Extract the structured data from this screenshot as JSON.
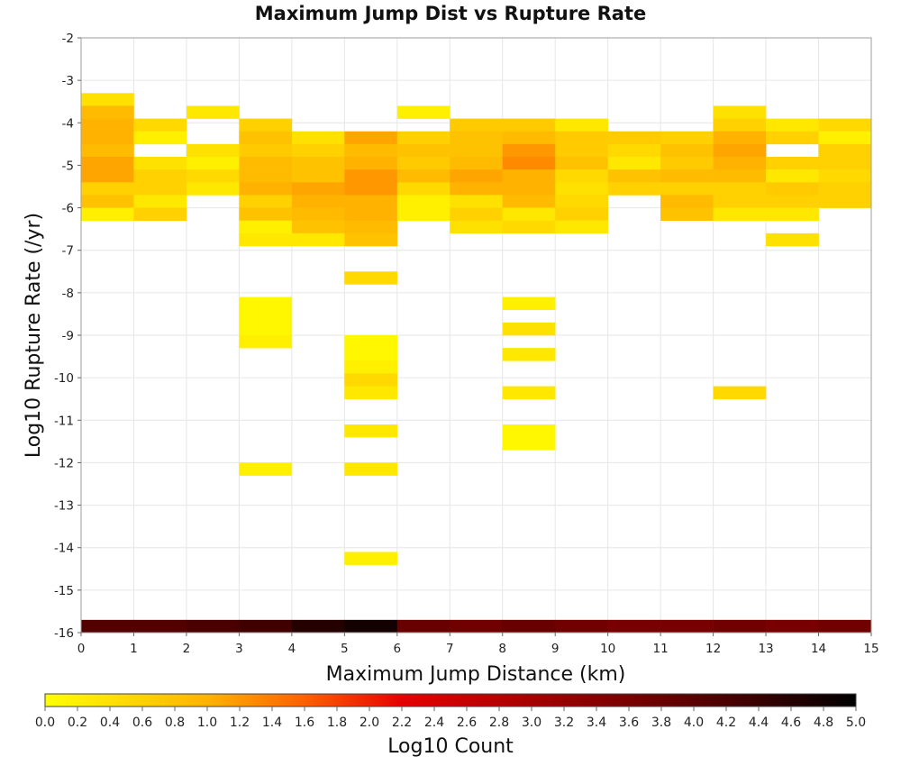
{
  "chart_data": {
    "type": "heatmap",
    "title": "Maximum Jump Dist vs Rupture Rate",
    "xlabel": "Maximum Jump Distance (km)",
    "ylabel": "Log10 Rupture Rate (/yr)",
    "xlim": [
      0,
      15
    ],
    "ylim": [
      -16,
      -2
    ],
    "x_ticks": [
      0,
      1,
      2,
      3,
      4,
      5,
      6,
      7,
      8,
      9,
      10,
      11,
      12,
      13,
      14,
      15
    ],
    "y_ticks": [
      -2,
      -3,
      -4,
      -5,
      -6,
      -7,
      -8,
      -9,
      -10,
      -11,
      -12,
      -13,
      -14,
      -15,
      -16
    ],
    "grid": true,
    "bin_width_x": 1,
    "bin_height_y": 0.3,
    "colorbar": {
      "label": "Log10 Count",
      "min": 0.0,
      "max": 5.0,
      "ticks": [
        "0.0",
        "0.2",
        "0.4",
        "0.6",
        "0.8",
        "1.0",
        "1.2",
        "1.4",
        "1.6",
        "1.8",
        "2.0",
        "2.2",
        "2.4",
        "2.6",
        "2.8",
        "3.0",
        "3.2",
        "3.4",
        "3.6",
        "3.8",
        "4.0",
        "4.2",
        "4.4",
        "4.6",
        "4.8",
        "5.0"
      ],
      "stops": [
        {
          "v": 0.0,
          "color": "#ffff00"
        },
        {
          "v": 1.0,
          "color": "#ffb300"
        },
        {
          "v": 1.6,
          "color": "#ff6000"
        },
        {
          "v": 2.2,
          "color": "#e80000"
        },
        {
          "v": 3.2,
          "color": "#980000"
        },
        {
          "v": 4.2,
          "color": "#4a0000"
        },
        {
          "v": 5.0,
          "color": "#000000"
        }
      ]
    },
    "cells": [
      {
        "x": 0,
        "y": -3.6,
        "v": 0.4
      },
      {
        "x": 0,
        "y": -3.9,
        "v": 0.9
      },
      {
        "x": 0,
        "y": -4.2,
        "v": 1.0
      },
      {
        "x": 0,
        "y": -4.5,
        "v": 1.0
      },
      {
        "x": 0,
        "y": -4.8,
        "v": 0.9
      },
      {
        "x": 0,
        "y": -5.1,
        "v": 1.1
      },
      {
        "x": 0,
        "y": -5.4,
        "v": 1.1
      },
      {
        "x": 0,
        "y": -5.7,
        "v": 0.6
      },
      {
        "x": 0,
        "y": -6.0,
        "v": 0.8
      },
      {
        "x": 0,
        "y": -6.3,
        "v": 0.2
      },
      {
        "x": 1,
        "y": -4.2,
        "v": 0.5
      },
      {
        "x": 1,
        "y": -4.5,
        "v": 0.2
      },
      {
        "x": 1,
        "y": -5.1,
        "v": 0.4
      },
      {
        "x": 1,
        "y": -5.4,
        "v": 0.6
      },
      {
        "x": 1,
        "y": -5.7,
        "v": 0.6
      },
      {
        "x": 1,
        "y": -6.0,
        "v": 0.3
      },
      {
        "x": 1,
        "y": -6.3,
        "v": 0.6
      },
      {
        "x": 2,
        "y": -3.9,
        "v": 0.3
      },
      {
        "x": 2,
        "y": -4.8,
        "v": 0.4
      },
      {
        "x": 2,
        "y": -5.1,
        "v": 0.2
      },
      {
        "x": 2,
        "y": -5.4,
        "v": 0.5
      },
      {
        "x": 2,
        "y": -5.7,
        "v": 0.3
      },
      {
        "x": 3,
        "y": -4.2,
        "v": 0.6
      },
      {
        "x": 3,
        "y": -4.5,
        "v": 0.8
      },
      {
        "x": 3,
        "y": -4.8,
        "v": 0.7
      },
      {
        "x": 3,
        "y": -5.1,
        "v": 0.9
      },
      {
        "x": 3,
        "y": -5.4,
        "v": 0.9
      },
      {
        "x": 3,
        "y": -5.7,
        "v": 1.0
      },
      {
        "x": 3,
        "y": -6.0,
        "v": 0.6
      },
      {
        "x": 3,
        "y": -6.3,
        "v": 0.8
      },
      {
        "x": 3,
        "y": -6.6,
        "v": 0.2
      },
      {
        "x": 3,
        "y": -6.9,
        "v": 0.3
      },
      {
        "x": 3,
        "y": -8.4,
        "v": 0.1
      },
      {
        "x": 3,
        "y": -8.7,
        "v": 0.1
      },
      {
        "x": 3,
        "y": -9.0,
        "v": 0.1
      },
      {
        "x": 3,
        "y": -9.3,
        "v": 0.2
      },
      {
        "x": 3,
        "y": -12.3,
        "v": 0.2
      },
      {
        "x": 4,
        "y": -4.5,
        "v": 0.4
      },
      {
        "x": 4,
        "y": -4.8,
        "v": 0.6
      },
      {
        "x": 4,
        "y": -5.1,
        "v": 0.8
      },
      {
        "x": 4,
        "y": -5.4,
        "v": 0.8
      },
      {
        "x": 4,
        "y": -5.7,
        "v": 1.1
      },
      {
        "x": 4,
        "y": -6.0,
        "v": 1.0
      },
      {
        "x": 4,
        "y": -6.3,
        "v": 0.9
      },
      {
        "x": 4,
        "y": -6.6,
        "v": 0.8
      },
      {
        "x": 4,
        "y": -6.9,
        "v": 0.3
      },
      {
        "x": 5,
        "y": -4.5,
        "v": 1.1
      },
      {
        "x": 5,
        "y": -4.8,
        "v": 0.9
      },
      {
        "x": 5,
        "y": -5.1,
        "v": 1.0
      },
      {
        "x": 5,
        "y": -5.4,
        "v": 1.2
      },
      {
        "x": 5,
        "y": -5.7,
        "v": 1.2
      },
      {
        "x": 5,
        "y": -6.0,
        "v": 1.0
      },
      {
        "x": 5,
        "y": -6.3,
        "v": 1.0
      },
      {
        "x": 5,
        "y": -6.6,
        "v": 0.9
      },
      {
        "x": 5,
        "y": -6.9,
        "v": 0.8
      },
      {
        "x": 5,
        "y": -7.8,
        "v": 0.5
      },
      {
        "x": 5,
        "y": -9.3,
        "v": 0.1
      },
      {
        "x": 5,
        "y": -9.6,
        "v": 0.1
      },
      {
        "x": 5,
        "y": -9.9,
        "v": 0.2
      },
      {
        "x": 5,
        "y": -10.2,
        "v": 0.5
      },
      {
        "x": 5,
        "y": -10.5,
        "v": 0.3
      },
      {
        "x": 5,
        "y": -11.4,
        "v": 0.3
      },
      {
        "x": 5,
        "y": -12.3,
        "v": 0.3
      },
      {
        "x": 5,
        "y": -14.4,
        "v": 0.2
      },
      {
        "x": 6,
        "y": -3.9,
        "v": 0.2
      },
      {
        "x": 6,
        "y": -4.5,
        "v": 0.6
      },
      {
        "x": 6,
        "y": -4.8,
        "v": 0.8
      },
      {
        "x": 6,
        "y": -5.1,
        "v": 0.7
      },
      {
        "x": 6,
        "y": -5.4,
        "v": 0.9
      },
      {
        "x": 6,
        "y": -5.7,
        "v": 0.5
      },
      {
        "x": 6,
        "y": -6.0,
        "v": 0.2
      },
      {
        "x": 6,
        "y": -6.3,
        "v": 0.2
      },
      {
        "x": 7,
        "y": -4.2,
        "v": 0.7
      },
      {
        "x": 7,
        "y": -4.5,
        "v": 0.8
      },
      {
        "x": 7,
        "y": -4.8,
        "v": 0.8
      },
      {
        "x": 7,
        "y": -5.1,
        "v": 0.9
      },
      {
        "x": 7,
        "y": -5.4,
        "v": 1.1
      },
      {
        "x": 7,
        "y": -5.7,
        "v": 1.0
      },
      {
        "x": 7,
        "y": -6.0,
        "v": 0.4
      },
      {
        "x": 7,
        "y": -6.3,
        "v": 0.6
      },
      {
        "x": 7,
        "y": -6.6,
        "v": 0.4
      },
      {
        "x": 8,
        "y": -4.2,
        "v": 0.7
      },
      {
        "x": 8,
        "y": -4.5,
        "v": 0.9
      },
      {
        "x": 8,
        "y": -4.8,
        "v": 1.2
      },
      {
        "x": 8,
        "y": -5.1,
        "v": 1.3
      },
      {
        "x": 8,
        "y": -5.4,
        "v": 1.0
      },
      {
        "x": 8,
        "y": -5.7,
        "v": 1.0
      },
      {
        "x": 8,
        "y": -6.0,
        "v": 0.9
      },
      {
        "x": 8,
        "y": -6.3,
        "v": 0.3
      },
      {
        "x": 8,
        "y": -6.6,
        "v": 0.5
      },
      {
        "x": 8,
        "y": -8.4,
        "v": 0.2
      },
      {
        "x": 8,
        "y": -9.0,
        "v": 0.4
      },
      {
        "x": 8,
        "y": -9.6,
        "v": 0.3
      },
      {
        "x": 8,
        "y": -10.5,
        "v": 0.3
      },
      {
        "x": 8,
        "y": -11.4,
        "v": 0.1
      },
      {
        "x": 8,
        "y": -11.7,
        "v": 0.1
      },
      {
        "x": 9,
        "y": -4.2,
        "v": 0.3
      },
      {
        "x": 9,
        "y": -4.5,
        "v": 0.7
      },
      {
        "x": 9,
        "y": -4.8,
        "v": 0.7
      },
      {
        "x": 9,
        "y": -5.1,
        "v": 0.8
      },
      {
        "x": 9,
        "y": -5.4,
        "v": 0.5
      },
      {
        "x": 9,
        "y": -5.7,
        "v": 0.4
      },
      {
        "x": 9,
        "y": -6.0,
        "v": 0.5
      },
      {
        "x": 9,
        "y": -6.3,
        "v": 0.6
      },
      {
        "x": 9,
        "y": -6.6,
        "v": 0.3
      },
      {
        "x": 10,
        "y": -4.5,
        "v": 0.7
      },
      {
        "x": 10,
        "y": -4.8,
        "v": 0.5
      },
      {
        "x": 10,
        "y": -5.1,
        "v": 0.3
      },
      {
        "x": 10,
        "y": -5.4,
        "v": 0.8
      },
      {
        "x": 10,
        "y": -5.7,
        "v": 0.6
      },
      {
        "x": 11,
        "y": -4.5,
        "v": 0.6
      },
      {
        "x": 11,
        "y": -4.8,
        "v": 0.8
      },
      {
        "x": 11,
        "y": -5.1,
        "v": 0.7
      },
      {
        "x": 11,
        "y": -5.4,
        "v": 0.9
      },
      {
        "x": 11,
        "y": -5.7,
        "v": 0.6
      },
      {
        "x": 11,
        "y": -6.0,
        "v": 0.9
      },
      {
        "x": 11,
        "y": -6.3,
        "v": 0.8
      },
      {
        "x": 12,
        "y": -3.9,
        "v": 0.4
      },
      {
        "x": 12,
        "y": -4.2,
        "v": 0.6
      },
      {
        "x": 12,
        "y": -4.5,
        "v": 1.0
      },
      {
        "x": 12,
        "y": -4.8,
        "v": 1.1
      },
      {
        "x": 12,
        "y": -5.1,
        "v": 1.0
      },
      {
        "x": 12,
        "y": -5.4,
        "v": 0.9
      },
      {
        "x": 12,
        "y": -5.7,
        "v": 0.6
      },
      {
        "x": 12,
        "y": -6.0,
        "v": 0.6
      },
      {
        "x": 12,
        "y": -6.3,
        "v": 0.3
      },
      {
        "x": 12,
        "y": -10.5,
        "v": 0.5
      },
      {
        "x": 13,
        "y": -4.2,
        "v": 0.3
      },
      {
        "x": 13,
        "y": -4.5,
        "v": 0.6
      },
      {
        "x": 13,
        "y": -5.1,
        "v": 0.6
      },
      {
        "x": 13,
        "y": -5.4,
        "v": 0.3
      },
      {
        "x": 13,
        "y": -5.7,
        "v": 0.7
      },
      {
        "x": 13,
        "y": -6.0,
        "v": 0.6
      },
      {
        "x": 13,
        "y": -6.3,
        "v": 0.3
      },
      {
        "x": 13,
        "y": -6.9,
        "v": 0.4
      },
      {
        "x": 14,
        "y": -4.2,
        "v": 0.5
      },
      {
        "x": 14,
        "y": -4.5,
        "v": 0.2
      },
      {
        "x": 14,
        "y": -4.8,
        "v": 0.6
      },
      {
        "x": 14,
        "y": -5.1,
        "v": 0.6
      },
      {
        "x": 14,
        "y": -5.4,
        "v": 0.5
      },
      {
        "x": 14,
        "y": -5.7,
        "v": 0.6
      },
      {
        "x": 14,
        "y": -6.0,
        "v": 0.6
      },
      {
        "x": 0,
        "y": -16.0,
        "v": 4.1
      },
      {
        "x": 1,
        "y": -16.0,
        "v": 4.1
      },
      {
        "x": 2,
        "y": -16.0,
        "v": 4.2
      },
      {
        "x": 3,
        "y": -16.0,
        "v": 4.3
      },
      {
        "x": 4,
        "y": -16.0,
        "v": 4.6
      },
      {
        "x": 5,
        "y": -16.0,
        "v": 4.8
      },
      {
        "x": 6,
        "y": -16.0,
        "v": 3.8
      },
      {
        "x": 7,
        "y": -16.0,
        "v": 3.7
      },
      {
        "x": 8,
        "y": -16.0,
        "v": 3.8
      },
      {
        "x": 9,
        "y": -16.0,
        "v": 3.7
      },
      {
        "x": 10,
        "y": -16.0,
        "v": 3.6
      },
      {
        "x": 11,
        "y": -16.0,
        "v": 3.6
      },
      {
        "x": 12,
        "y": -16.0,
        "v": 3.7
      },
      {
        "x": 13,
        "y": -16.0,
        "v": 3.6
      },
      {
        "x": 14,
        "y": -16.0,
        "v": 3.7
      }
    ]
  }
}
